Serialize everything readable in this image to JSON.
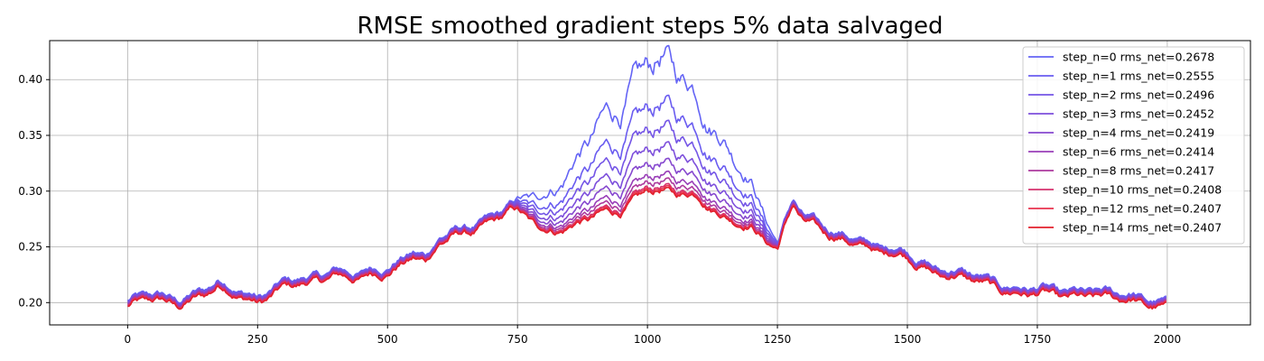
{
  "chart_data": {
    "type": "line",
    "title": "RMSE smoothed gradient steps 5% data salvaged",
    "xlabel": "",
    "ylabel": "",
    "xlim": [
      -150,
      2160
    ],
    "ylim": [
      0.18,
      0.435
    ],
    "xticks": [
      0,
      250,
      500,
      750,
      1000,
      1250,
      1500,
      1750,
      2000
    ],
    "yticks": [
      0.2,
      0.25,
      0.3,
      0.35,
      0.4
    ],
    "grid": true,
    "legend_position": "top-right",
    "x_range": [
      0,
      2000
    ],
    "series": [
      {
        "name": "step_n=0 rms_net=0.2678",
        "color": "#6464f5",
        "peak": 0.412
      },
      {
        "name": "step_n=1 rms_net=0.2555",
        "color": "#6a5cf0",
        "peak": 0.372
      },
      {
        "name": "step_n=2 rms_net=0.2496",
        "color": "#7455e6",
        "peak": 0.352
      },
      {
        "name": "step_n=3 rms_net=0.2452",
        "color": "#7d4fdc",
        "peak": 0.335
      },
      {
        "name": "step_n=4 rms_net=0.2419",
        "color": "#8648cf",
        "peak": 0.322
      },
      {
        "name": "step_n=6 rms_net=0.2414",
        "color": "#9a3fb8",
        "peak": 0.312
      },
      {
        "name": "step_n=8 rms_net=0.2417",
        "color": "#ad3a9e",
        "peak": 0.307
      },
      {
        "name": "step_n=10 rms_net=0.2408",
        "color": "#d6336e",
        "peak": 0.303
      },
      {
        "name": "step_n=12 rms_net=0.2407",
        "color": "#e8334e",
        "peak": 0.302
      },
      {
        "name": "step_n=14 rms_net=0.2407",
        "color": "#e3202c",
        "peak": 0.301
      }
    ],
    "baseline_profile": {
      "x": [
        0,
        50,
        100,
        150,
        175,
        200,
        250,
        300,
        350,
        400,
        450,
        500,
        550,
        575,
        600,
        650,
        700,
        740,
        800,
        850,
        900,
        950,
        1000,
        1050,
        1100,
        1150,
        1200,
        1250,
        1280,
        1300,
        1350,
        1400,
        1450,
        1500,
        1550,
        1600,
        1650,
        1700,
        1750,
        1800,
        1850,
        1900,
        1950,
        2000
      ],
      "y": [
        0.196,
        0.201,
        0.199,
        0.207,
        0.212,
        0.208,
        0.201,
        0.212,
        0.216,
        0.226,
        0.22,
        0.226,
        0.243,
        0.236,
        0.252,
        0.262,
        0.272,
        0.282,
        0.265,
        0.268,
        0.275,
        0.282,
        0.3,
        0.295,
        0.296,
        0.276,
        0.265,
        0.249,
        0.291,
        0.272,
        0.258,
        0.255,
        0.244,
        0.24,
        0.228,
        0.222,
        0.215,
        0.21,
        0.207,
        0.203,
        0.207,
        0.202,
        0.199,
        0.196
      ]
    }
  }
}
